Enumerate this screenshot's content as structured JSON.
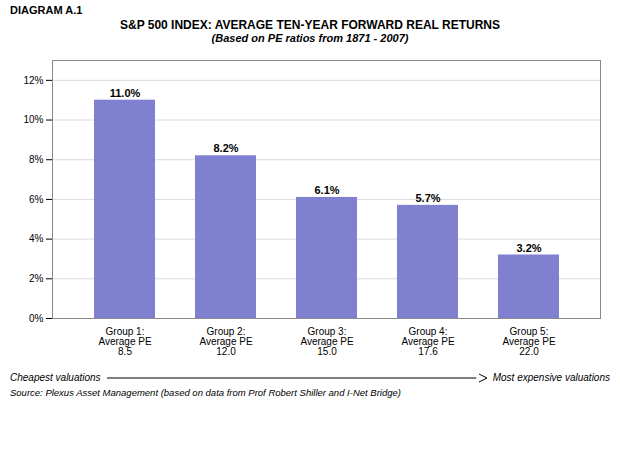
{
  "chart_data": {
    "type": "bar",
    "title": "S&P 500 INDEX: AVERAGE TEN-YEAR FORWARD REAL RETURNS",
    "subtitle": "(Based on PE ratios from 1871 - 2007)",
    "categories": [
      "Group 1:\nAverage PE\n8.5",
      "Group 2:\nAverage PE\n12.0",
      "Group 3:\nAverage PE\n15.0",
      "Group 4:\nAverage PE\n17.6",
      "Group 5:\nAverage PE\n22.0"
    ],
    "values": [
      11.0,
      8.2,
      6.1,
      5.7,
      3.2
    ],
    "value_labels": [
      "11.0%",
      "8.2%",
      "6.1%",
      "5.7%",
      "3.2%"
    ],
    "data_labels": true,
    "color": "#8080d0",
    "ylim": [
      0,
      13
    ],
    "yticks": [
      {
        "value": 0,
        "label": "0%"
      },
      {
        "value": 2,
        "label": "2%"
      },
      {
        "value": 4,
        "label": "4%"
      },
      {
        "value": 6,
        "label": "6%"
      },
      {
        "value": 8,
        "label": "8%"
      },
      {
        "value": 10,
        "label": "10%"
      },
      {
        "value": 12,
        "label": "12%"
      }
    ],
    "grid": true,
    "annotations": [
      "DIAGRAM A.1",
      "Cheapest valuations",
      "Most expensive valuations"
    ],
    "source": "Source:  Plexus Asset Management (based on data from Prof Robert Shiller and I-Net Bridge)"
  }
}
